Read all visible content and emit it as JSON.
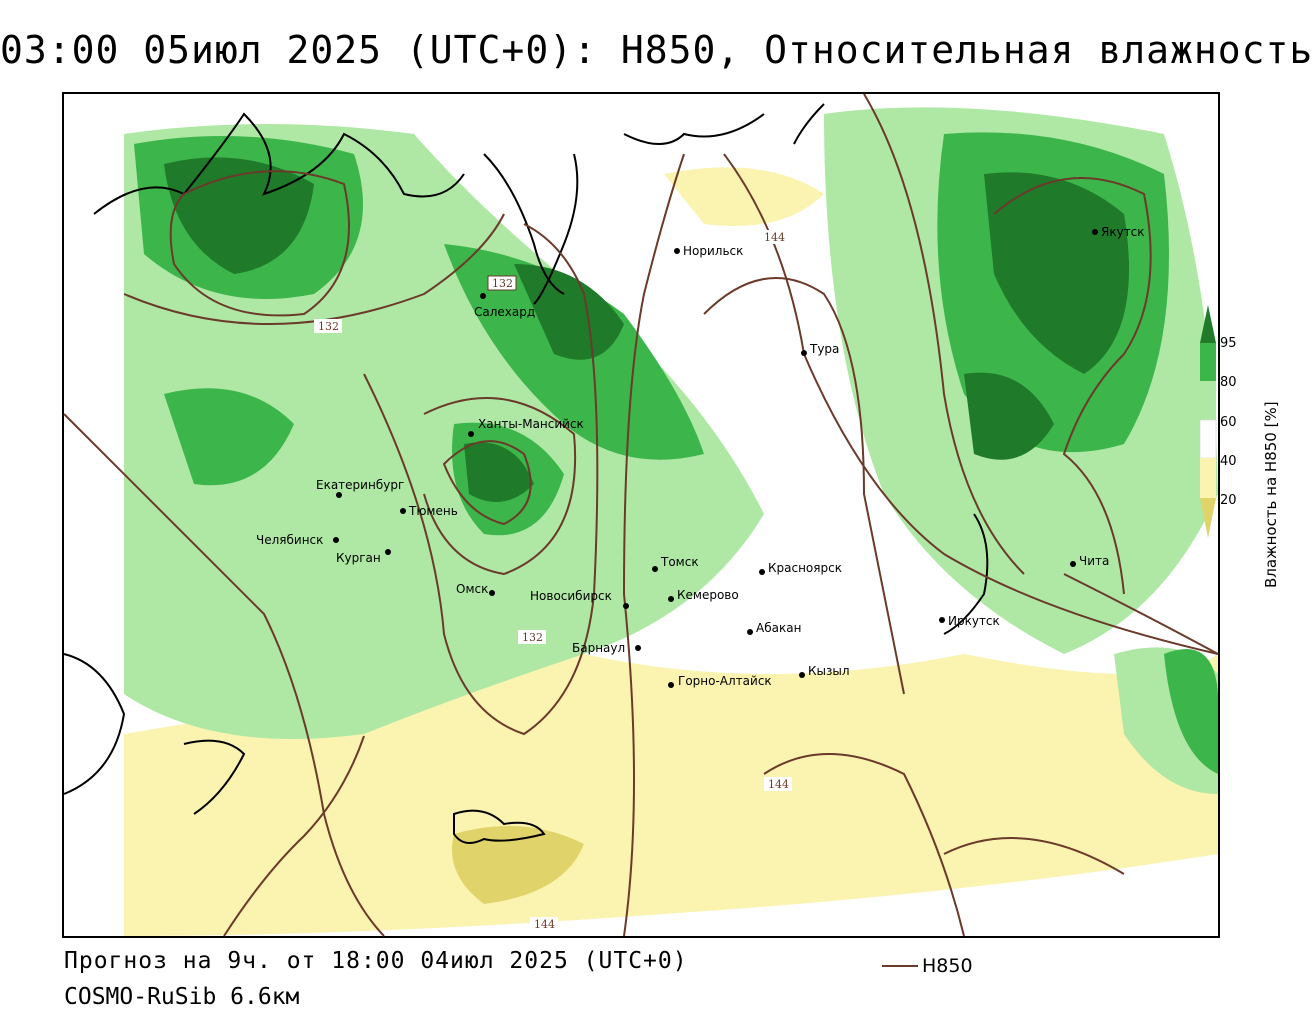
{
  "title": "03:00 05июл 2025 (UTC+0): H850, Относительная влажность",
  "footer": {
    "forecast": "Прогноз на 9ч. от 18:00 04июл 2025 (UTC+0)",
    "model": "COSMO-RuSib 6.6км"
  },
  "legend": {
    "line_label": "H850",
    "line_color": "#6b3a2a"
  },
  "colorbar": {
    "title": "Влажность на H850 [%]",
    "ticks": [
      "95",
      "80",
      "60",
      "40",
      "20"
    ],
    "colors": {
      "c95": "#1f7a2a",
      "c80": "#3cb54a",
      "c60": "#aee8a4",
      "c40": "#ffffff",
      "c20": "#fbf3b0",
      "c0": "#e0d36a"
    }
  },
  "cities": [
    "Норильск",
    "Якутск",
    "Салехард",
    "Тура",
    "Ханты-Мансийск",
    "Екатеринбург",
    "Тюмень",
    "Челябинск",
    "Курган",
    "Омск",
    "Томск",
    "Красноярск",
    "Новосибирск",
    "Кемерово",
    "Абакан",
    "Барнаул",
    "Горно-Алтайск",
    "Кызыл",
    "Иркутск",
    "Чита"
  ],
  "contour_labels": [
    "132",
    "132",
    "132",
    "144",
    "144",
    "144"
  ]
}
